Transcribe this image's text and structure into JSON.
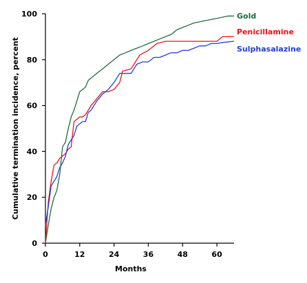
{
  "chart_data": {
    "type": "line",
    "title": "",
    "xlabel": "Months",
    "ylabel": "Cumulative termination incidence, percent",
    "xlim": [
      0,
      66
    ],
    "ylim": [
      0,
      100
    ],
    "x_ticks": [
      0,
      12,
      24,
      36,
      48,
      60
    ],
    "y_ticks": [
      0,
      20,
      40,
      60,
      80,
      100
    ],
    "grid": false,
    "legend_placement": "right-end-labels",
    "series": [
      {
        "name": "Gold",
        "color": "#1e6b3a",
        "points": [
          [
            0,
            0
          ],
          [
            1,
            8
          ],
          [
            2,
            15
          ],
          [
            3,
            20
          ],
          [
            4,
            23
          ],
          [
            5,
            30
          ],
          [
            6,
            42
          ],
          [
            7,
            44
          ],
          [
            8,
            50
          ],
          [
            9,
            55
          ],
          [
            10,
            58
          ],
          [
            11,
            62
          ],
          [
            12,
            66
          ],
          [
            13,
            67
          ],
          [
            14,
            68
          ],
          [
            15,
            71
          ],
          [
            16,
            72
          ],
          [
            18,
            74
          ],
          [
            20,
            76
          ],
          [
            22,
            78
          ],
          [
            24,
            80
          ],
          [
            26,
            82
          ],
          [
            28,
            83
          ],
          [
            30,
            84
          ],
          [
            32,
            85
          ],
          [
            34,
            86
          ],
          [
            36,
            87
          ],
          [
            38,
            88
          ],
          [
            40,
            89
          ],
          [
            42,
            90
          ],
          [
            44,
            91
          ],
          [
            46,
            93
          ],
          [
            48,
            94
          ],
          [
            50,
            95
          ],
          [
            52,
            96
          ],
          [
            54,
            96.5
          ],
          [
            56,
            97
          ],
          [
            58,
            97.5
          ],
          [
            60,
            98
          ],
          [
            62,
            98.5
          ],
          [
            64,
            99
          ],
          [
            66,
            99
          ]
        ]
      },
      {
        "name": "Penicillamine",
        "color": "#e8121b",
        "points": [
          [
            0,
            0
          ],
          [
            1,
            18
          ],
          [
            2,
            27
          ],
          [
            3,
            34
          ],
          [
            4,
            35
          ],
          [
            5,
            37
          ],
          [
            6,
            38
          ],
          [
            7,
            39
          ],
          [
            8,
            41
          ],
          [
            9,
            42
          ],
          [
            10,
            53
          ],
          [
            11,
            54
          ],
          [
            12,
            55
          ],
          [
            13,
            55
          ],
          [
            14,
            56
          ],
          [
            15,
            58
          ],
          [
            16,
            60
          ],
          [
            18,
            63
          ],
          [
            20,
            66
          ],
          [
            22,
            66
          ],
          [
            24,
            67
          ],
          [
            26,
            70
          ],
          [
            27,
            75
          ],
          [
            30,
            76
          ],
          [
            33,
            82
          ],
          [
            36,
            84
          ],
          [
            39,
            87
          ],
          [
            42,
            88
          ],
          [
            48,
            88
          ],
          [
            54,
            88
          ],
          [
            60,
            88
          ],
          [
            62,
            90
          ],
          [
            66,
            90
          ]
        ]
      },
      {
        "name": "Sulphasalazine",
        "color": "#1f3fd6",
        "points": [
          [
            0,
            8
          ],
          [
            1,
            16
          ],
          [
            2,
            25
          ],
          [
            3,
            27
          ],
          [
            4,
            29
          ],
          [
            5,
            33
          ],
          [
            6,
            35
          ],
          [
            7,
            38
          ],
          [
            8,
            43
          ],
          [
            9,
            45
          ],
          [
            10,
            47
          ],
          [
            11,
            51
          ],
          [
            12,
            52
          ],
          [
            13,
            53
          ],
          [
            14,
            53
          ],
          [
            15,
            57
          ],
          [
            16,
            58
          ],
          [
            18,
            62
          ],
          [
            20,
            65
          ],
          [
            22,
            67
          ],
          [
            24,
            70
          ],
          [
            26,
            74
          ],
          [
            28,
            74
          ],
          [
            30,
            74
          ],
          [
            32,
            78
          ],
          [
            34,
            79
          ],
          [
            36,
            79
          ],
          [
            38,
            81
          ],
          [
            40,
            81
          ],
          [
            42,
            82
          ],
          [
            44,
            83
          ],
          [
            46,
            83
          ],
          [
            48,
            84
          ],
          [
            50,
            84
          ],
          [
            52,
            85
          ],
          [
            54,
            86
          ],
          [
            56,
            86
          ],
          [
            58,
            87
          ],
          [
            60,
            87
          ],
          [
            62,
            87.5
          ],
          [
            66,
            88
          ]
        ]
      }
    ]
  }
}
